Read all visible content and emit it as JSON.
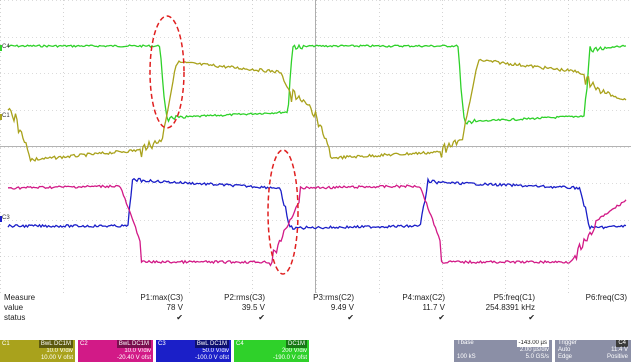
{
  "colors": {
    "ch1": "#a9a21c",
    "ch2": "#d21a87",
    "ch3": "#1b1fc8",
    "ch4": "#2fd12a",
    "highlight": "#e02020",
    "grid": "#b8b8b8",
    "panel": "#8b8fa6"
  },
  "markers": {
    "c1": "C1",
    "c2": "C2",
    "c3": "C3",
    "c4": "C4"
  },
  "measure": {
    "row_labels": {
      "measure": "Measure",
      "value": "value",
      "status": "status"
    },
    "columns": [
      {
        "head": "P1:max(C3)",
        "value": "78 V",
        "status": "✔"
      },
      {
        "head": "P2:rms(C3)",
        "value": "39.5 V",
        "status": "✔"
      },
      {
        "head": "P3:rms(C2)",
        "value": "9.49 V",
        "status": "✔"
      },
      {
        "head": "P4:max(C2)",
        "value": "11.7 V",
        "status": "✔"
      },
      {
        "head": "P5:freq(C1)",
        "value": "254.8391 kHz",
        "status": "✔"
      },
      {
        "head": "P6:freq(C3)",
        "value": "",
        "status": ""
      }
    ]
  },
  "channels": [
    {
      "name": "C1",
      "tag": "BwL DC1M",
      "line1": "10.0 V/div",
      "line2": "10.00 V ofst",
      "color": "#a9a21c"
    },
    {
      "name": "C2",
      "tag": "BwL DC1M",
      "line1": "10.0 V/div",
      "line2": "-20.40 V ofst",
      "color": "#d21a87"
    },
    {
      "name": "C3",
      "tag": "BwL DC1M",
      "line1": "50.0 V/div",
      "line2": "-100.0 V ofst",
      "color": "#1b1fc8"
    },
    {
      "name": "C4",
      "tag": "DC1M",
      "line1": "200 V/div",
      "line2": "-190.0 V ofst",
      "color": "#2fd12a"
    }
  ],
  "timebase": {
    "label": "Tbase",
    "value": "-143.00 µs",
    "line1": "2.00 µs/div",
    "line2_l": "100 kS",
    "line2_r": "5.0 GS/s"
  },
  "trigger": {
    "label": "Trigger",
    "tag": "C4",
    "line1_l": "Auto",
    "line1_r": "11.4 V",
    "line2_l": "Edge",
    "line2_r": "Positive"
  }
}
